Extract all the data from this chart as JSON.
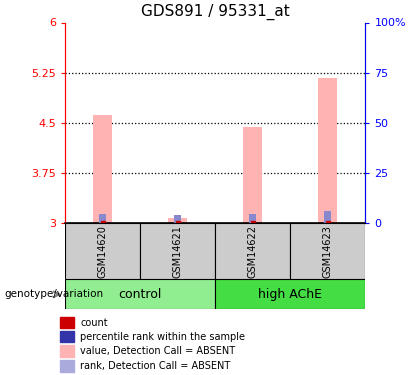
{
  "title": "GDS891 / 95331_at",
  "samples": [
    "GSM14620",
    "GSM14621",
    "GSM14622",
    "GSM14623"
  ],
  "groups": [
    "control",
    "control",
    "high AChE",
    "high AChE"
  ],
  "ylim_left": [
    3,
    6
  ],
  "ylim_right": [
    0,
    100
  ],
  "yticks_left": [
    3,
    3.75,
    4.5,
    5.25,
    6
  ],
  "yticks_right": [
    0,
    25,
    50,
    75,
    100
  ],
  "ytick_labels_left": [
    "3",
    "3.75",
    "4.5",
    "5.25",
    "6"
  ],
  "ytick_labels_right": [
    "0",
    "25",
    "50",
    "75",
    "100%"
  ],
  "pink_bar_tops": [
    4.62,
    3.07,
    4.44,
    5.17
  ],
  "blue_bar_tops": [
    3.14,
    3.12,
    3.14,
    3.18
  ],
  "bar_base": 3.0,
  "pink_color": "#ffb3b3",
  "blue_color": "#8888cc",
  "red_dot_color": "#cc0000",
  "left_yaxis_color": "red",
  "right_yaxis_color": "blue",
  "gridline_color": "#333333",
  "sample_box_color": "#cccccc",
  "ctrl_color": "#90ee90",
  "high_color": "#44dd44",
  "title_fontsize": 11,
  "tick_fontsize": 8,
  "bar_width": 0.25,
  "legend_items": [
    {
      "label": "count",
      "color": "#cc0000"
    },
    {
      "label": "percentile rank within the sample",
      "color": "#3333aa"
    },
    {
      "label": "value, Detection Call = ABSENT",
      "color": "#ffb3b3"
    },
    {
      "label": "rank, Detection Call = ABSENT",
      "color": "#aaaadd"
    }
  ],
  "genotype_label": "genotype/variation"
}
